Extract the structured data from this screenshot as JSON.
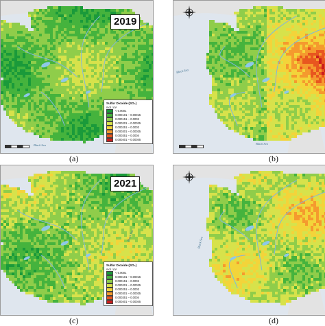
{
  "panels": [
    {
      "id": "a",
      "caption": "(a)",
      "year": "2019",
      "sea_labels": [
        "Black Sea"
      ],
      "legend": true
    },
    {
      "id": "b",
      "caption": "(b)",
      "year": "",
      "sea_labels": [
        "Black Sea",
        "Black Sea"
      ],
      "legend": false
    },
    {
      "id": "c",
      "caption": "(c)",
      "year": "2021",
      "sea_labels": [
        "Black Sea"
      ],
      "legend": true
    },
    {
      "id": "d",
      "caption": "(d)",
      "year": "",
      "sea_labels": [
        "Black Sea"
      ],
      "legend": false
    }
  ],
  "legend": {
    "title": "Sulfur Dioxide (SO₂)",
    "unit": "mol / m²",
    "classes": [
      {
        "label": "< 0.0001",
        "color": "#1a9a3a"
      },
      {
        "label": "0.000101 – 0.00015",
        "color": "#45b33d"
      },
      {
        "label": "0.000151 – 0.0002",
        "color": "#8fcd4a"
      },
      {
        "label": "0.000201 – 0.00025",
        "color": "#d7e24b"
      },
      {
        "label": "0.000251 – 0.0003",
        "color": "#f3d43a"
      },
      {
        "label": "0.000301 – 0.00035",
        "color": "#f59a2e"
      },
      {
        "label": "0.000351 – 0.0004",
        "color": "#e8561f"
      },
      {
        "label": "0.000401 – 0.00045",
        "color": "#cc1d1d"
      }
    ]
  },
  "colors": {
    "land_bg": "#e3e3e3",
    "sea": "#dfe6ee",
    "river": "#7fb6de",
    "lake": "#8ec8ea"
  }
}
